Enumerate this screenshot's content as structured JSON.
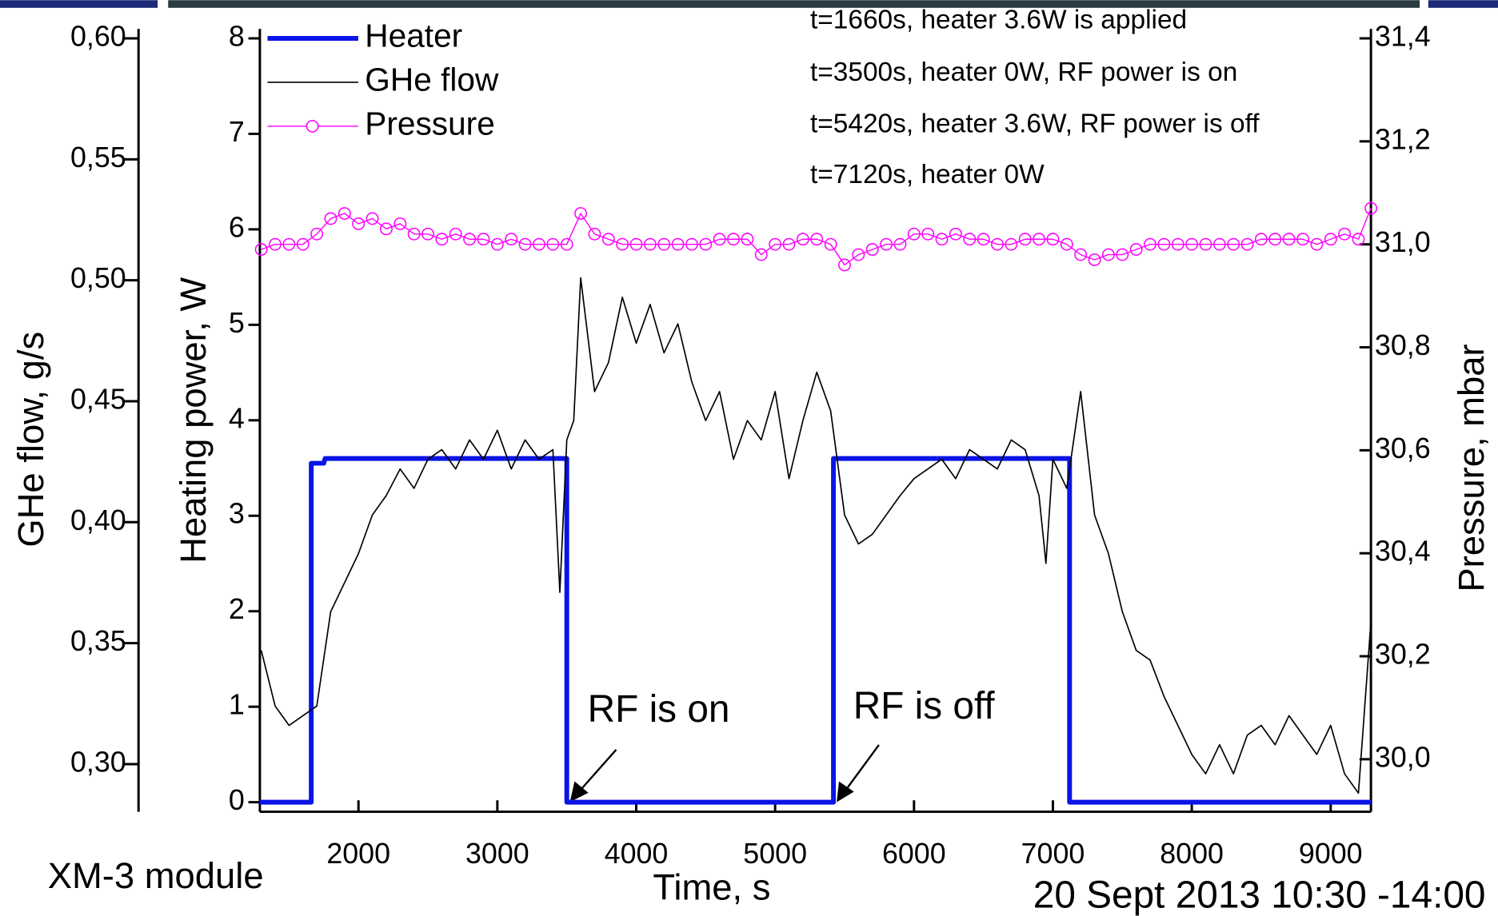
{
  "chart_data": {
    "type": "line",
    "xlabel": "Time, s",
    "ylabel": "Heating power, W",
    "y2label": "Pressure, mbar",
    "y3label": "GHe flow, g/s",
    "xlim": [
      1290,
      9290
    ],
    "xticks": [
      2000,
      3000,
      4000,
      5000,
      6000,
      7000,
      8000,
      9000
    ],
    "ylim": [
      -0.1,
      8
    ],
    "yticks": [
      0,
      1,
      2,
      3,
      4,
      5,
      6,
      7,
      8
    ],
    "y2lim": [
      29.898,
      31.4
    ],
    "y2ticks": [
      {
        "value": 30.0,
        "label": "30,0"
      },
      {
        "value": 30.2,
        "label": "30,2"
      },
      {
        "value": 30.4,
        "label": "30,4"
      },
      {
        "value": 30.6,
        "label": "30,6"
      },
      {
        "value": 30.8,
        "label": "30,8"
      },
      {
        "value": 31.0,
        "label": "31,0"
      },
      {
        "value": 31.2,
        "label": "31,2"
      },
      {
        "value": 31.4,
        "label": "31,4"
      }
    ],
    "y3lim": [
      0.2803,
      0.6
    ],
    "y3ticks": [
      {
        "value": 0.3,
        "label": "0,30"
      },
      {
        "value": 0.35,
        "label": "0,35"
      },
      {
        "value": 0.4,
        "label": "0,40"
      },
      {
        "value": 0.45,
        "label": "0,45"
      },
      {
        "value": 0.5,
        "label": "0,50"
      },
      {
        "value": 0.55,
        "label": "0,55"
      },
      {
        "value": 0.6,
        "label": "0,60"
      }
    ],
    "legend": "upper left",
    "series": [
      {
        "name": "Heater",
        "color": "#0a14e6",
        "axis": "y",
        "style": "step",
        "x": [
          1290,
          1660,
          1660,
          1750,
          1760,
          3500,
          3500,
          5420,
          5420,
          7120,
          7120,
          9290
        ],
        "values": [
          0,
          0,
          3.55,
          3.55,
          3.6,
          3.6,
          0,
          0,
          3.6,
          3.6,
          0,
          0
        ]
      },
      {
        "name": "GHe flow",
        "color": "#000000",
        "axis": "y3",
        "style": "thin",
        "x": [
          1300,
          1400,
          1500,
          1600,
          1700,
          1800,
          1900,
          2000,
          2100,
          2200,
          2300,
          2400,
          2500,
          2600,
          2700,
          2800,
          2900,
          3000,
          3100,
          3200,
          3300,
          3400,
          3450,
          3500,
          3550,
          3600,
          3700,
          3800,
          3900,
          4000,
          4100,
          4200,
          4300,
          4400,
          4500,
          4600,
          4700,
          4800,
          4900,
          5000,
          5100,
          5200,
          5300,
          5400,
          5500,
          5600,
          5700,
          5800,
          5900,
          6000,
          6100,
          6200,
          6300,
          6400,
          6500,
          6600,
          6700,
          6800,
          6900,
          6950,
          7000,
          7100,
          7200,
          7300,
          7400,
          7500,
          7600,
          7700,
          7800,
          7900,
          8000,
          8100,
          8200,
          8300,
          8400,
          8500,
          8600,
          8700,
          8800,
          8900,
          9000,
          9100,
          9200,
          9290
        ],
        "values": [
          0.347,
          0.324,
          0.316,
          0.32,
          0.324,
          0.363,
          0.375,
          0.387,
          0.403,
          0.411,
          0.422,
          0.414,
          0.426,
          0.43,
          0.422,
          0.434,
          0.426,
          0.438,
          0.422,
          0.434,
          0.426,
          0.43,
          0.371,
          0.434,
          0.442,
          0.501,
          0.454,
          0.466,
          0.493,
          0.474,
          0.49,
          0.47,
          0.482,
          0.458,
          0.442,
          0.454,
          0.426,
          0.442,
          0.434,
          0.454,
          0.418,
          0.442,
          0.462,
          0.446,
          0.403,
          0.391,
          0.395,
          0.403,
          0.411,
          0.418,
          0.422,
          0.426,
          0.418,
          0.43,
          0.426,
          0.422,
          0.434,
          0.43,
          0.411,
          0.383,
          0.426,
          0.414,
          0.454,
          0.403,
          0.387,
          0.363,
          0.347,
          0.343,
          0.328,
          0.316,
          0.304,
          0.296,
          0.308,
          0.296,
          0.312,
          0.316,
          0.308,
          0.32,
          0.312,
          0.304,
          0.316,
          0.296,
          0.288,
          0.359
        ]
      },
      {
        "name": "Pressure",
        "color": "#ff00ff",
        "axis": "y2",
        "style": "markers",
        "x": [
          1300,
          1400,
          1500,
          1600,
          1700,
          1800,
          1900,
          2000,
          2100,
          2200,
          2300,
          2400,
          2500,
          2600,
          2700,
          2800,
          2900,
          3000,
          3100,
          3200,
          3300,
          3400,
          3500,
          3600,
          3700,
          3800,
          3900,
          4000,
          4100,
          4200,
          4300,
          4400,
          4500,
          4600,
          4700,
          4800,
          4900,
          5000,
          5100,
          5200,
          5300,
          5400,
          5500,
          5600,
          5700,
          5800,
          5900,
          6000,
          6100,
          6200,
          6300,
          6400,
          6500,
          6600,
          6700,
          6800,
          6900,
          7000,
          7100,
          7200,
          7300,
          7400,
          7500,
          7600,
          7700,
          7800,
          7900,
          8000,
          8100,
          8200,
          8300,
          8400,
          8500,
          8600,
          8700,
          8800,
          8900,
          9000,
          9100,
          9200,
          9290
        ],
        "values": [
          30.99,
          31.0,
          31.0,
          31.0,
          31.02,
          31.05,
          31.06,
          31.04,
          31.05,
          31.03,
          31.04,
          31.02,
          31.02,
          31.01,
          31.02,
          31.01,
          31.01,
          31.0,
          31.01,
          31.0,
          31.0,
          31.0,
          31.0,
          31.06,
          31.02,
          31.01,
          31.0,
          31.0,
          31.0,
          31.0,
          31.0,
          31.0,
          31.0,
          31.01,
          31.01,
          31.01,
          30.98,
          31.0,
          31.0,
          31.01,
          31.01,
          31.0,
          30.96,
          30.98,
          30.99,
          31.0,
          31.0,
          31.02,
          31.02,
          31.01,
          31.02,
          31.01,
          31.01,
          31.0,
          31.0,
          31.01,
          31.01,
          31.01,
          31.0,
          30.98,
          30.97,
          30.98,
          30.98,
          30.99,
          31.0,
          31.0,
          31.0,
          31.0,
          31.0,
          31.0,
          31.0,
          31.0,
          31.01,
          31.01,
          31.01,
          31.01,
          31.0,
          31.01,
          31.02,
          31.01,
          31.07
        ]
      }
    ],
    "annotations": [
      "t=1660s, heater 3.6W is applied",
      "t=3500s, heater 0W, RF power is on",
      "t=5420s, heater 3.6W, RF power is off",
      "t=7120s, heater 0W"
    ],
    "markers_text": [
      "RF is on",
      "RF is off"
    ],
    "footer_left": "XM-3 module",
    "footer_right": "20 Sept 2013 10:30 -14:00"
  }
}
